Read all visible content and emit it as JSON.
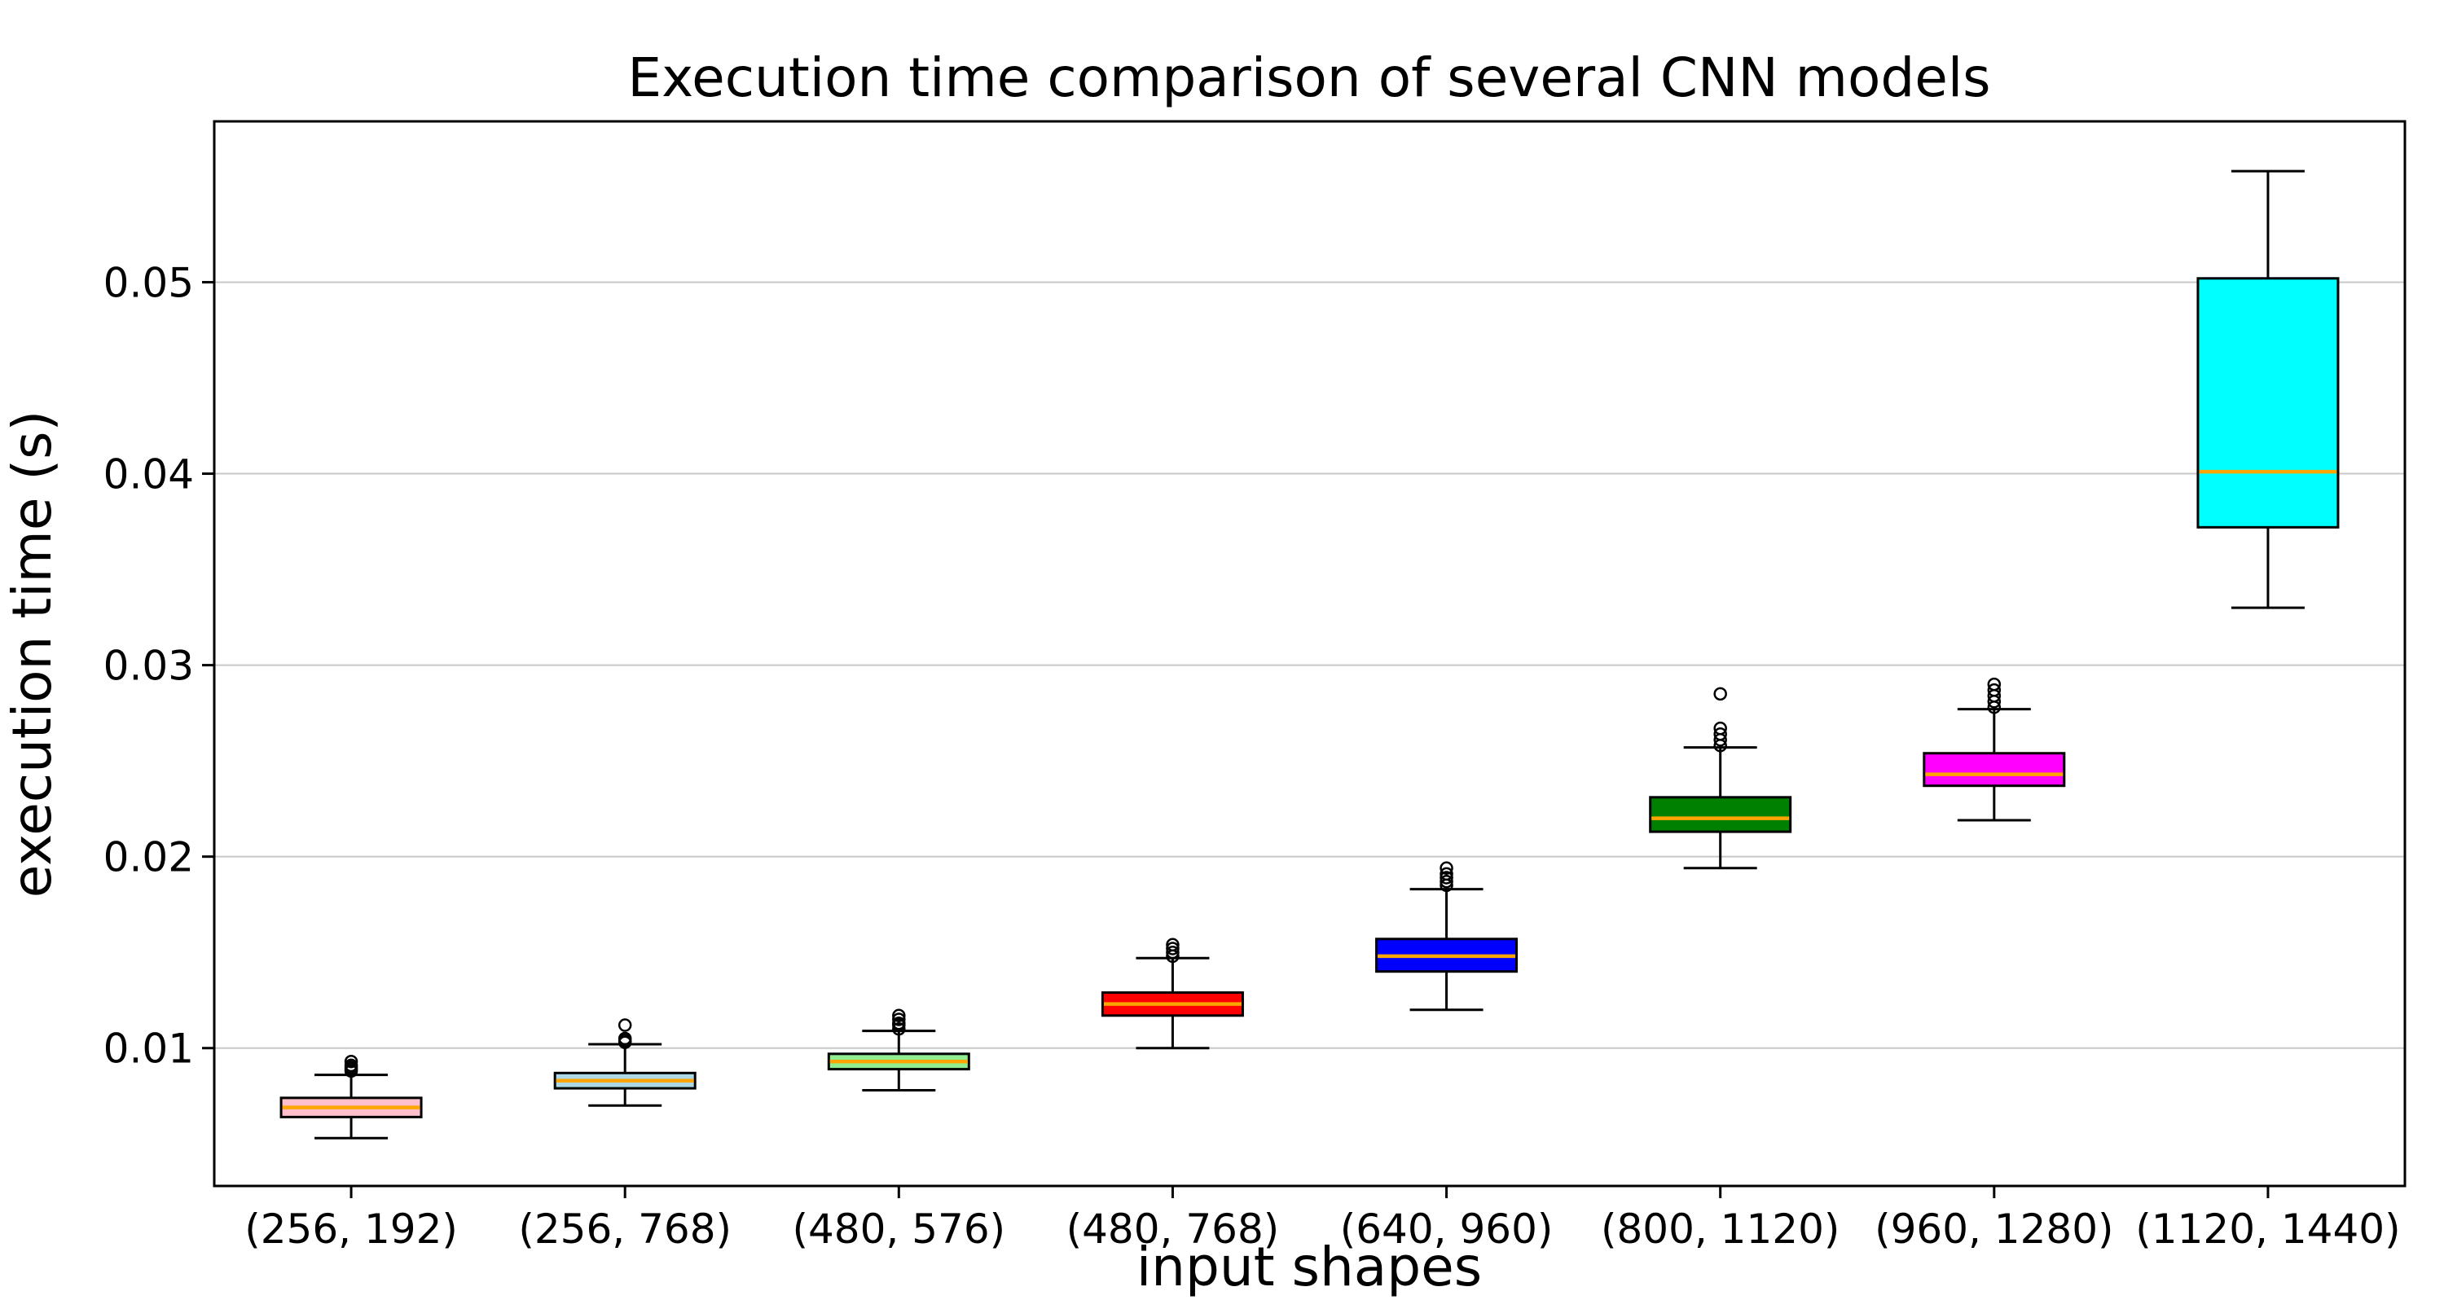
{
  "figure": {
    "title": "Execution time comparison of several CNN models",
    "xlabel": "input shapes",
    "ylabel": "execution time (s)"
  },
  "chart_data": {
    "type": "boxplot",
    "title": "Execution time comparison of several CNN models",
    "xlabel": "input shapes",
    "ylabel": "execution time (s)",
    "ylim": [
      0.0028,
      0.0584
    ],
    "yticks": [
      0.01,
      0.02,
      0.03,
      0.04,
      0.05
    ],
    "ytick_labels": [
      "0.01",
      "0.02",
      "0.03",
      "0.04",
      "0.05"
    ],
    "grid": true,
    "legend_position": "none",
    "colors": {
      "median": "#ffa500",
      "box_edge": "#000000",
      "whisker": "#000000",
      "gridline": "#c8c8c8",
      "spine": "#000000",
      "background": "#ffffff"
    },
    "categories": [
      "(256, 192)",
      "(256, 768)",
      "(480, 576)",
      "(480, 768)",
      "(640, 960)",
      "(800, 1120)",
      "(960, 1280)",
      "(1120, 1440)"
    ],
    "series": [
      {
        "label": "(256, 192)",
        "color": "#ffc0cb",
        "whislo": 0.0053,
        "q1": 0.0064,
        "med": 0.0069,
        "q3": 0.0074,
        "whishi": 0.0086,
        "fliers": [
          0.0088,
          0.0089,
          0.009,
          0.0091,
          0.0093
        ]
      },
      {
        "label": "(256, 768)",
        "color": "#add8e6",
        "whislo": 0.007,
        "q1": 0.0079,
        "med": 0.0083,
        "q3": 0.0087,
        "whishi": 0.0102,
        "fliers": [
          0.0103,
          0.0104,
          0.0105,
          0.0112
        ]
      },
      {
        "label": "(480, 576)",
        "color": "#90ee90",
        "whislo": 0.0078,
        "q1": 0.0089,
        "med": 0.0093,
        "q3": 0.0097,
        "whishi": 0.0109,
        "fliers": [
          0.011,
          0.0112,
          0.0113,
          0.0115,
          0.0117
        ]
      },
      {
        "label": "(480, 768)",
        "color": "#ff0000",
        "whislo": 0.01,
        "q1": 0.0117,
        "med": 0.0123,
        "q3": 0.0129,
        "whishi": 0.0147,
        "fliers": [
          0.0148,
          0.015,
          0.0152,
          0.0154
        ]
      },
      {
        "label": "(640, 960)",
        "color": "#0000ff",
        "whislo": 0.012,
        "q1": 0.014,
        "med": 0.0148,
        "q3": 0.0157,
        "whishi": 0.0183,
        "fliers": [
          0.0185,
          0.0187,
          0.0189,
          0.0191,
          0.0194
        ]
      },
      {
        "label": "(800, 1120)",
        "color": "#008000",
        "whislo": 0.0194,
        "q1": 0.0213,
        "med": 0.022,
        "q3": 0.0231,
        "whishi": 0.0257,
        "fliers": [
          0.0258,
          0.0261,
          0.0264,
          0.0267,
          0.0285
        ]
      },
      {
        "label": "(960, 1280)",
        "color": "#ff00ff",
        "whislo": 0.0219,
        "q1": 0.0237,
        "med": 0.0243,
        "q3": 0.0254,
        "whishi": 0.0277,
        "fliers": [
          0.0278,
          0.0281,
          0.0284,
          0.0287,
          0.029
        ]
      },
      {
        "label": "(1120, 1440)",
        "color": "#00ffff",
        "whislo": 0.033,
        "q1": 0.0372,
        "med": 0.0401,
        "q3": 0.0502,
        "whishi": 0.0558,
        "fliers": []
      }
    ]
  }
}
